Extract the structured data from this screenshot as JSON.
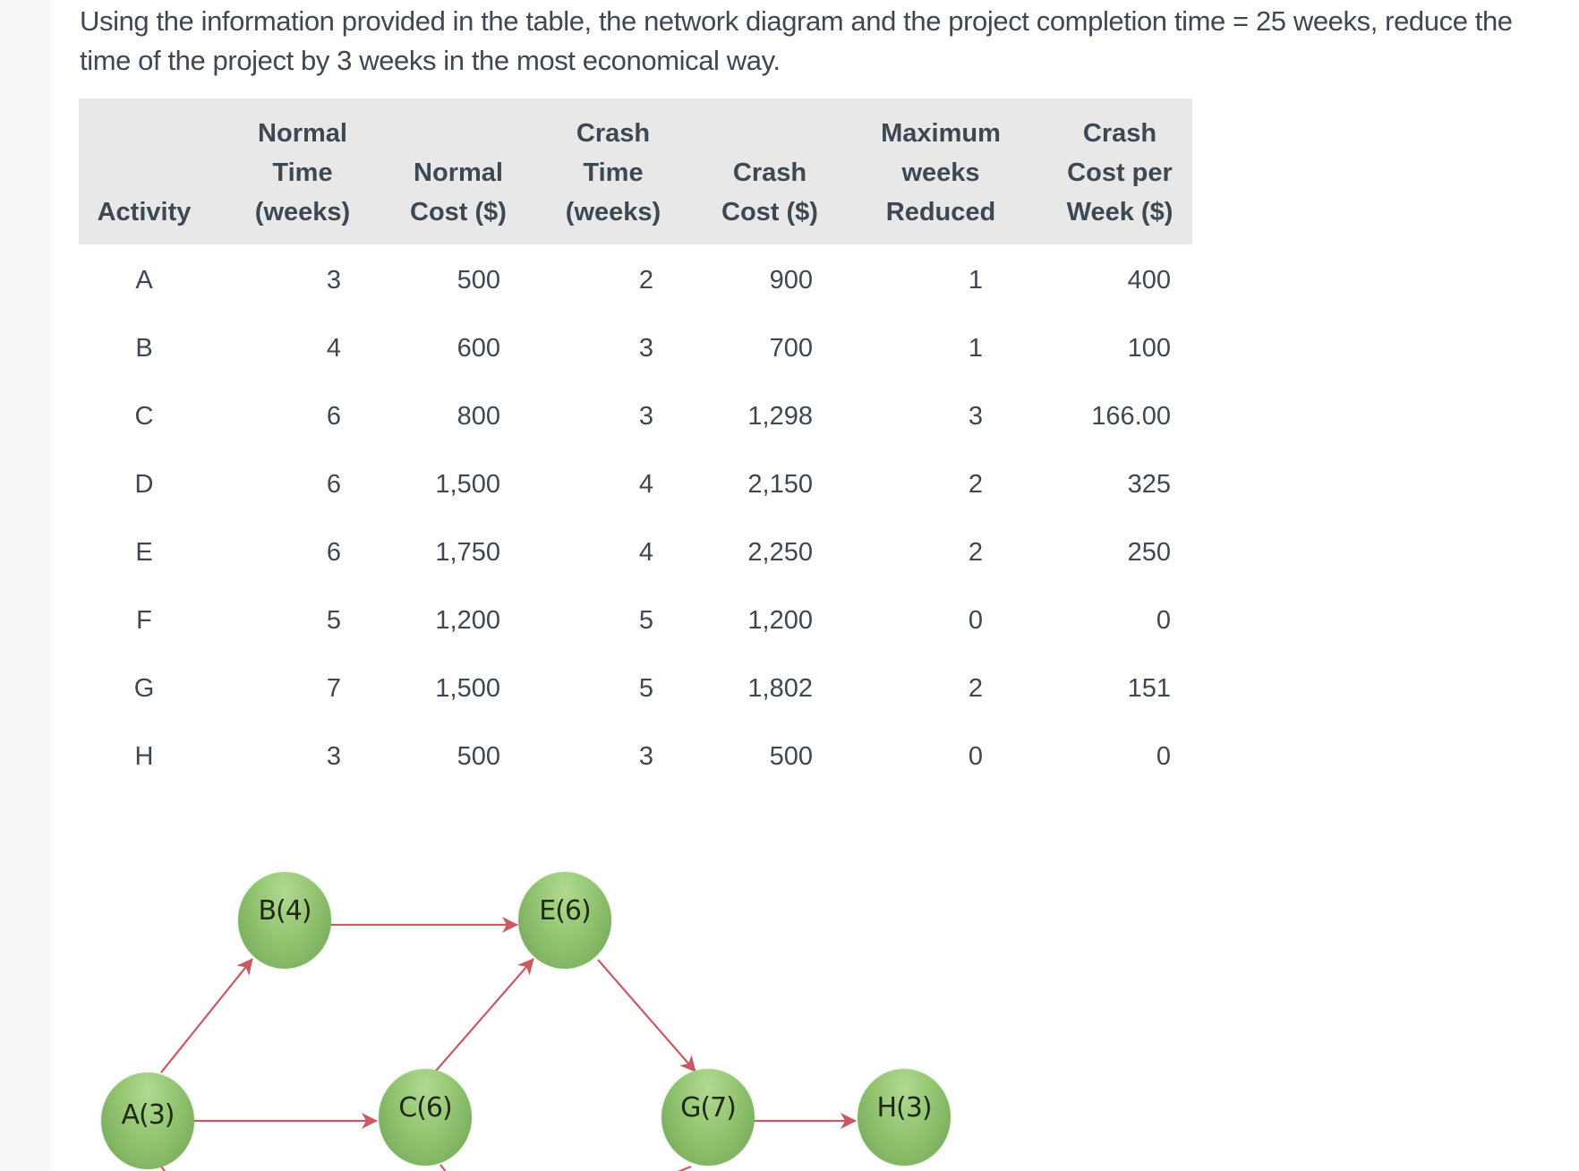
{
  "question": {
    "line1": "Using the information provided in the table, the network diagram and the project completion time = 25 weeks, reduce the",
    "line2": "time of the project by 3 weeks in the most economical way."
  },
  "table": {
    "headers": [
      {
        "lines": [
          "Activity"
        ]
      },
      {
        "lines": [
          "Normal",
          "Time",
          "(weeks)"
        ]
      },
      {
        "lines": [
          "Normal",
          "Cost ($)"
        ]
      },
      {
        "lines": [
          "Crash",
          "Time",
          "(weeks)"
        ]
      },
      {
        "lines": [
          "Crash",
          "Cost ($)"
        ]
      },
      {
        "lines": [
          "Maximum",
          "weeks",
          "Reduced"
        ]
      },
      {
        "lines": [
          "Crash",
          "Cost per",
          "Week ($)"
        ]
      }
    ],
    "rows": [
      [
        "A",
        "3",
        "500",
        "2",
        "900",
        "1",
        "400"
      ],
      [
        "B",
        "4",
        "600",
        "3",
        "700",
        "1",
        "100"
      ],
      [
        "C",
        "6",
        "800",
        "3",
        "1,298",
        "3",
        "166.00"
      ],
      [
        "D",
        "6",
        "1,500",
        "4",
        "2,150",
        "2",
        "325"
      ],
      [
        "E",
        "6",
        "1,750",
        "4",
        "2,250",
        "2",
        "250"
      ],
      [
        "F",
        "5",
        "1,200",
        "5",
        "1,200",
        "0",
        "0"
      ],
      [
        "G",
        "7",
        "1,500",
        "5",
        "1,802",
        "2",
        "151"
      ],
      [
        "H",
        "3",
        "500",
        "3",
        "500",
        "0",
        "0"
      ]
    ]
  },
  "network": {
    "nodes": [
      {
        "id": "A",
        "label": "A(3)"
      },
      {
        "id": "B",
        "label": "B(4)"
      },
      {
        "id": "C",
        "label": "C(6)"
      },
      {
        "id": "E",
        "label": "E(6)"
      },
      {
        "id": "G",
        "label": "G(7)"
      },
      {
        "id": "H",
        "label": "H(3)"
      }
    ],
    "edges": [
      [
        "A",
        "B"
      ],
      [
        "A",
        "C"
      ],
      [
        "B",
        "E"
      ],
      [
        "C",
        "E"
      ],
      [
        "E",
        "G"
      ],
      [
        "G",
        "H"
      ]
    ],
    "colors": {
      "node": "#93c471",
      "edge": "#c95a64"
    }
  }
}
